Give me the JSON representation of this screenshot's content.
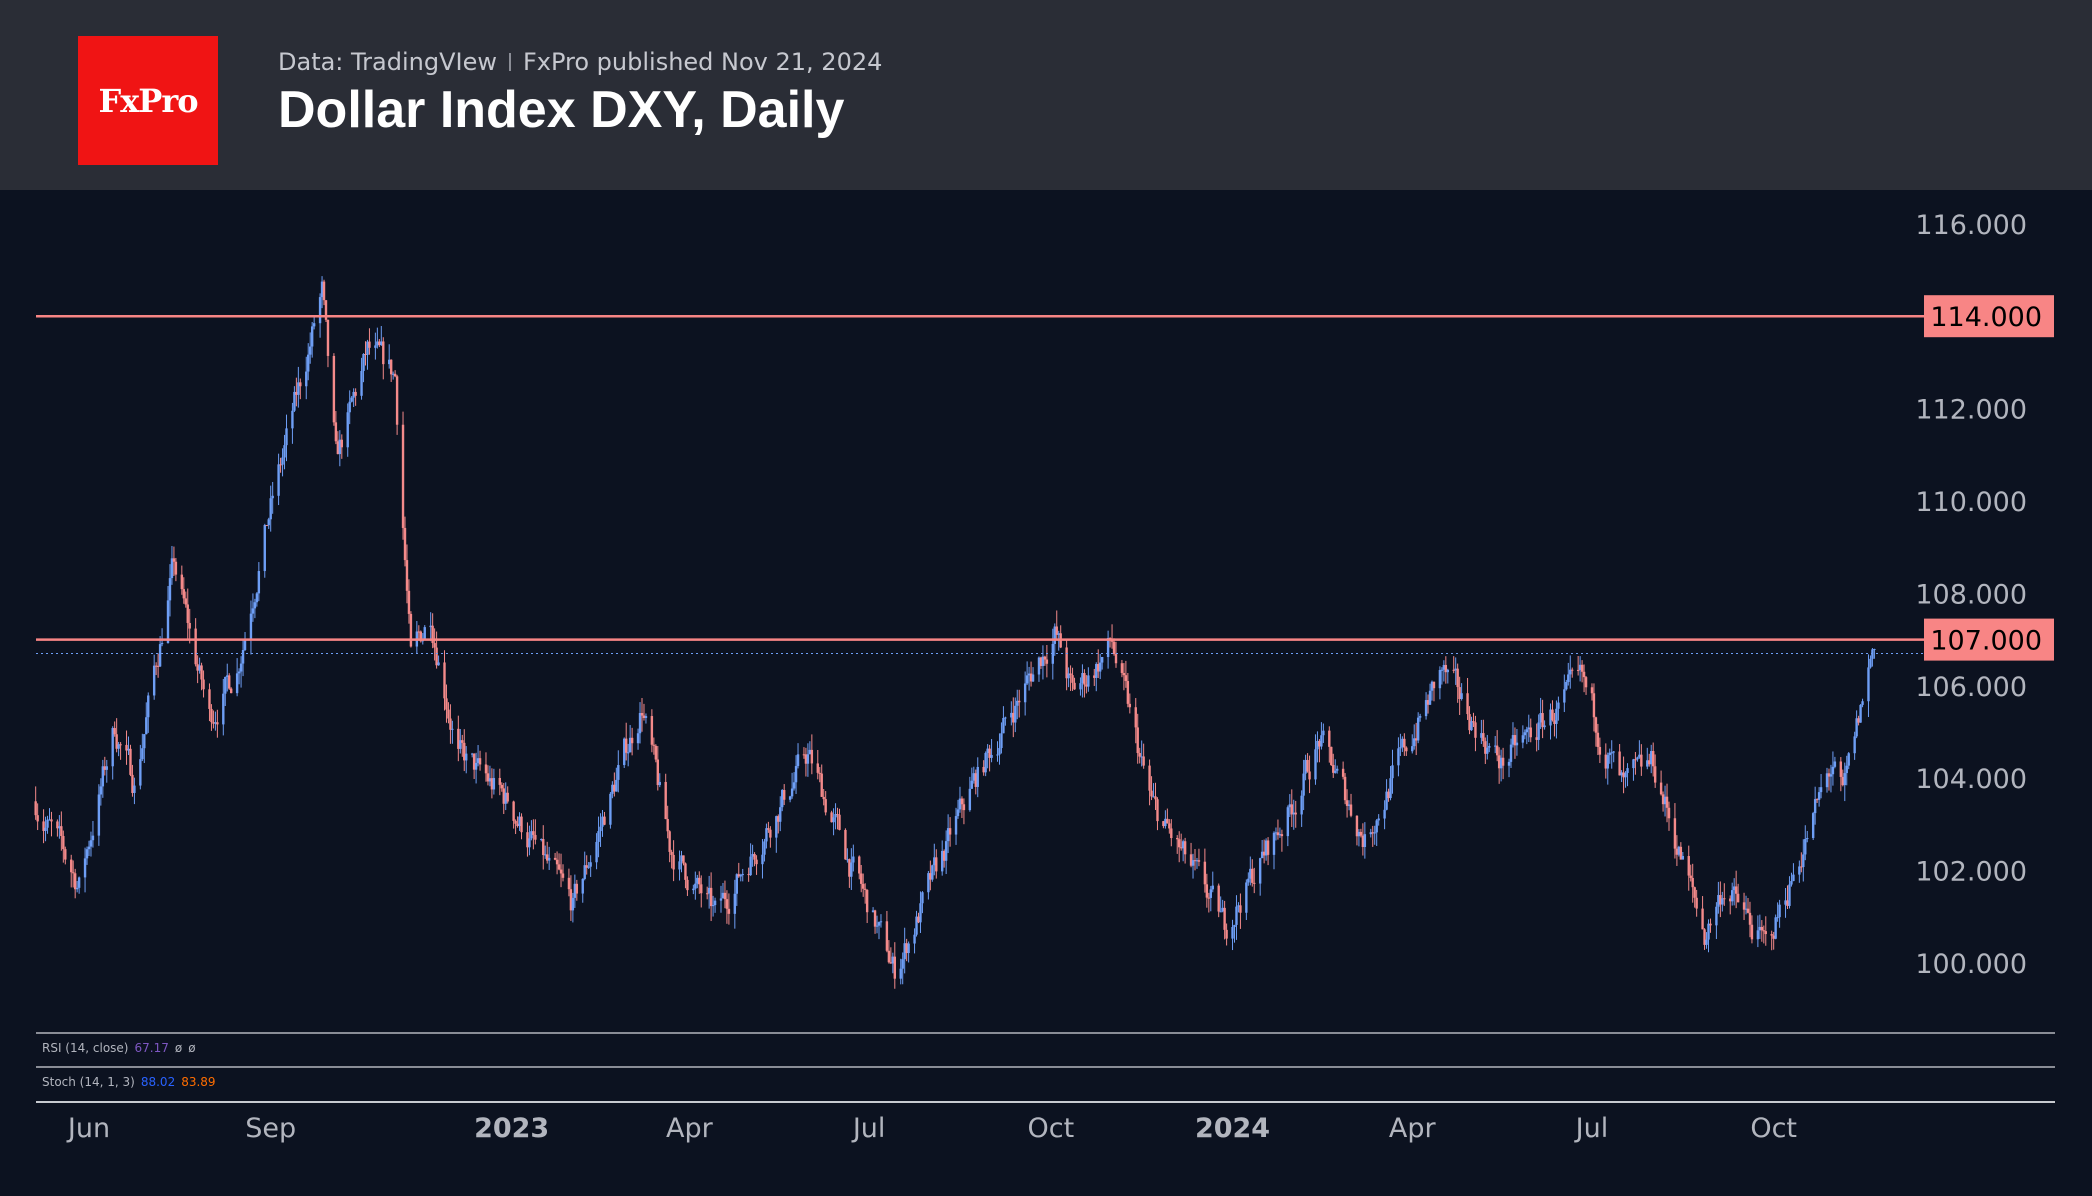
{
  "header": {
    "logo": "FxPro",
    "source": "Data: TradingVIew",
    "published": "FxPro published Nov 21, 2024",
    "title": "Dollar Index DXY, Daily"
  },
  "indicators": {
    "rsi": {
      "label": "RSI (14, close)",
      "value": "67.17",
      "extra1": "ø",
      "extra2": "ø",
      "color": "#7e57c2"
    },
    "stoch": {
      "label": "Stoch (14, 1, 3)",
      "k": "88.02",
      "d": "83.89",
      "k_color": "#2962ff",
      "d_color": "#ff6d00"
    }
  },
  "colors": {
    "up": "#6e9ef5",
    "down": "#f48a8a",
    "level": "#f88585"
  },
  "chart_data": {
    "type": "candlestick",
    "title": "Dollar Index DXY, Daily",
    "ylim": [
      98.8,
      117
    ],
    "yticks": [
      "100.000",
      "102.000",
      "104.000",
      "106.000",
      "108.000",
      "110.000",
      "112.000",
      "116.000"
    ],
    "ytick_values": [
      100,
      102,
      104,
      106,
      108,
      110,
      112,
      116
    ],
    "xticks": [
      {
        "label": "Jun",
        "date": "2022-06-01",
        "bold": false
      },
      {
        "label": "Sep",
        "date": "2022-09-01",
        "bold": false
      },
      {
        "label": "2023",
        "date": "2023-01-01",
        "bold": true
      },
      {
        "label": "Apr",
        "date": "2023-04-01",
        "bold": false
      },
      {
        "label": "Jul",
        "date": "2023-07-01",
        "bold": false
      },
      {
        "label": "Oct",
        "date": "2023-10-01",
        "bold": false
      },
      {
        "label": "2024",
        "date": "2024-01-01",
        "bold": true
      },
      {
        "label": "Apr",
        "date": "2024-04-01",
        "bold": false
      },
      {
        "label": "Jul",
        "date": "2024-07-01",
        "bold": false
      },
      {
        "label": "Oct",
        "date": "2024-10-01",
        "bold": false
      }
    ],
    "levels": [
      {
        "value": 114,
        "label": "114.000"
      },
      {
        "value": 107,
        "label": "107.000"
      }
    ],
    "last_price": 106.7,
    "start_date": "2022-05-05",
    "end_date": "2024-11-21",
    "approx_path": [
      [
        "2022-05-05",
        103.5
      ],
      [
        "2022-05-27",
        101.7
      ],
      [
        "2022-06-14",
        105.1
      ],
      [
        "2022-06-24",
        103.9
      ],
      [
        "2022-07-14",
        108.6
      ],
      [
        "2022-08-01",
        105.3
      ],
      [
        "2022-08-15",
        106.4
      ],
      [
        "2022-08-29",
        109.3
      ],
      [
        "2022-09-27",
        114.5
      ],
      [
        "2022-10-04",
        110.8
      ],
      [
        "2022-10-20",
        113.2
      ],
      [
        "2022-11-03",
        112.7
      ],
      [
        "2022-11-11",
        106.5
      ],
      [
        "2022-11-21",
        107.6
      ],
      [
        "2022-12-05",
        104.5
      ],
      [
        "2022-12-30",
        103.5
      ],
      [
        "2023-01-20",
        102.0
      ],
      [
        "2023-02-01",
        101.2
      ],
      [
        "2023-03-08",
        105.6
      ],
      [
        "2023-03-22",
        102.5
      ],
      [
        "2023-04-14",
        101.0
      ],
      [
        "2023-05-31",
        104.5
      ],
      [
        "2023-06-20",
        102.3
      ],
      [
        "2023-07-14",
        99.8
      ],
      [
        "2023-08-22",
        103.8
      ],
      [
        "2023-10-03",
        107.2
      ],
      [
        "2023-10-12",
        105.8
      ],
      [
        "2023-11-01",
        106.9
      ],
      [
        "2023-11-21",
        103.4
      ],
      [
        "2023-12-28",
        100.8
      ],
      [
        "2024-01-31",
        103.4
      ],
      [
        "2024-02-14",
        104.8
      ],
      [
        "2024-03-08",
        102.7
      ],
      [
        "2024-04-16",
        106.3
      ],
      [
        "2024-05-16",
        104.3
      ],
      [
        "2024-06-26",
        106.0
      ],
      [
        "2024-07-17",
        103.7
      ],
      [
        "2024-08-01",
        104.3
      ],
      [
        "2024-08-27",
        100.6
      ],
      [
        "2024-09-06",
        101.7
      ],
      [
        "2024-09-27",
        100.3
      ],
      [
        "2024-10-31",
        104.3
      ],
      [
        "2024-11-05",
        103.5
      ],
      [
        "2024-11-21",
        107.0
      ]
    ]
  }
}
